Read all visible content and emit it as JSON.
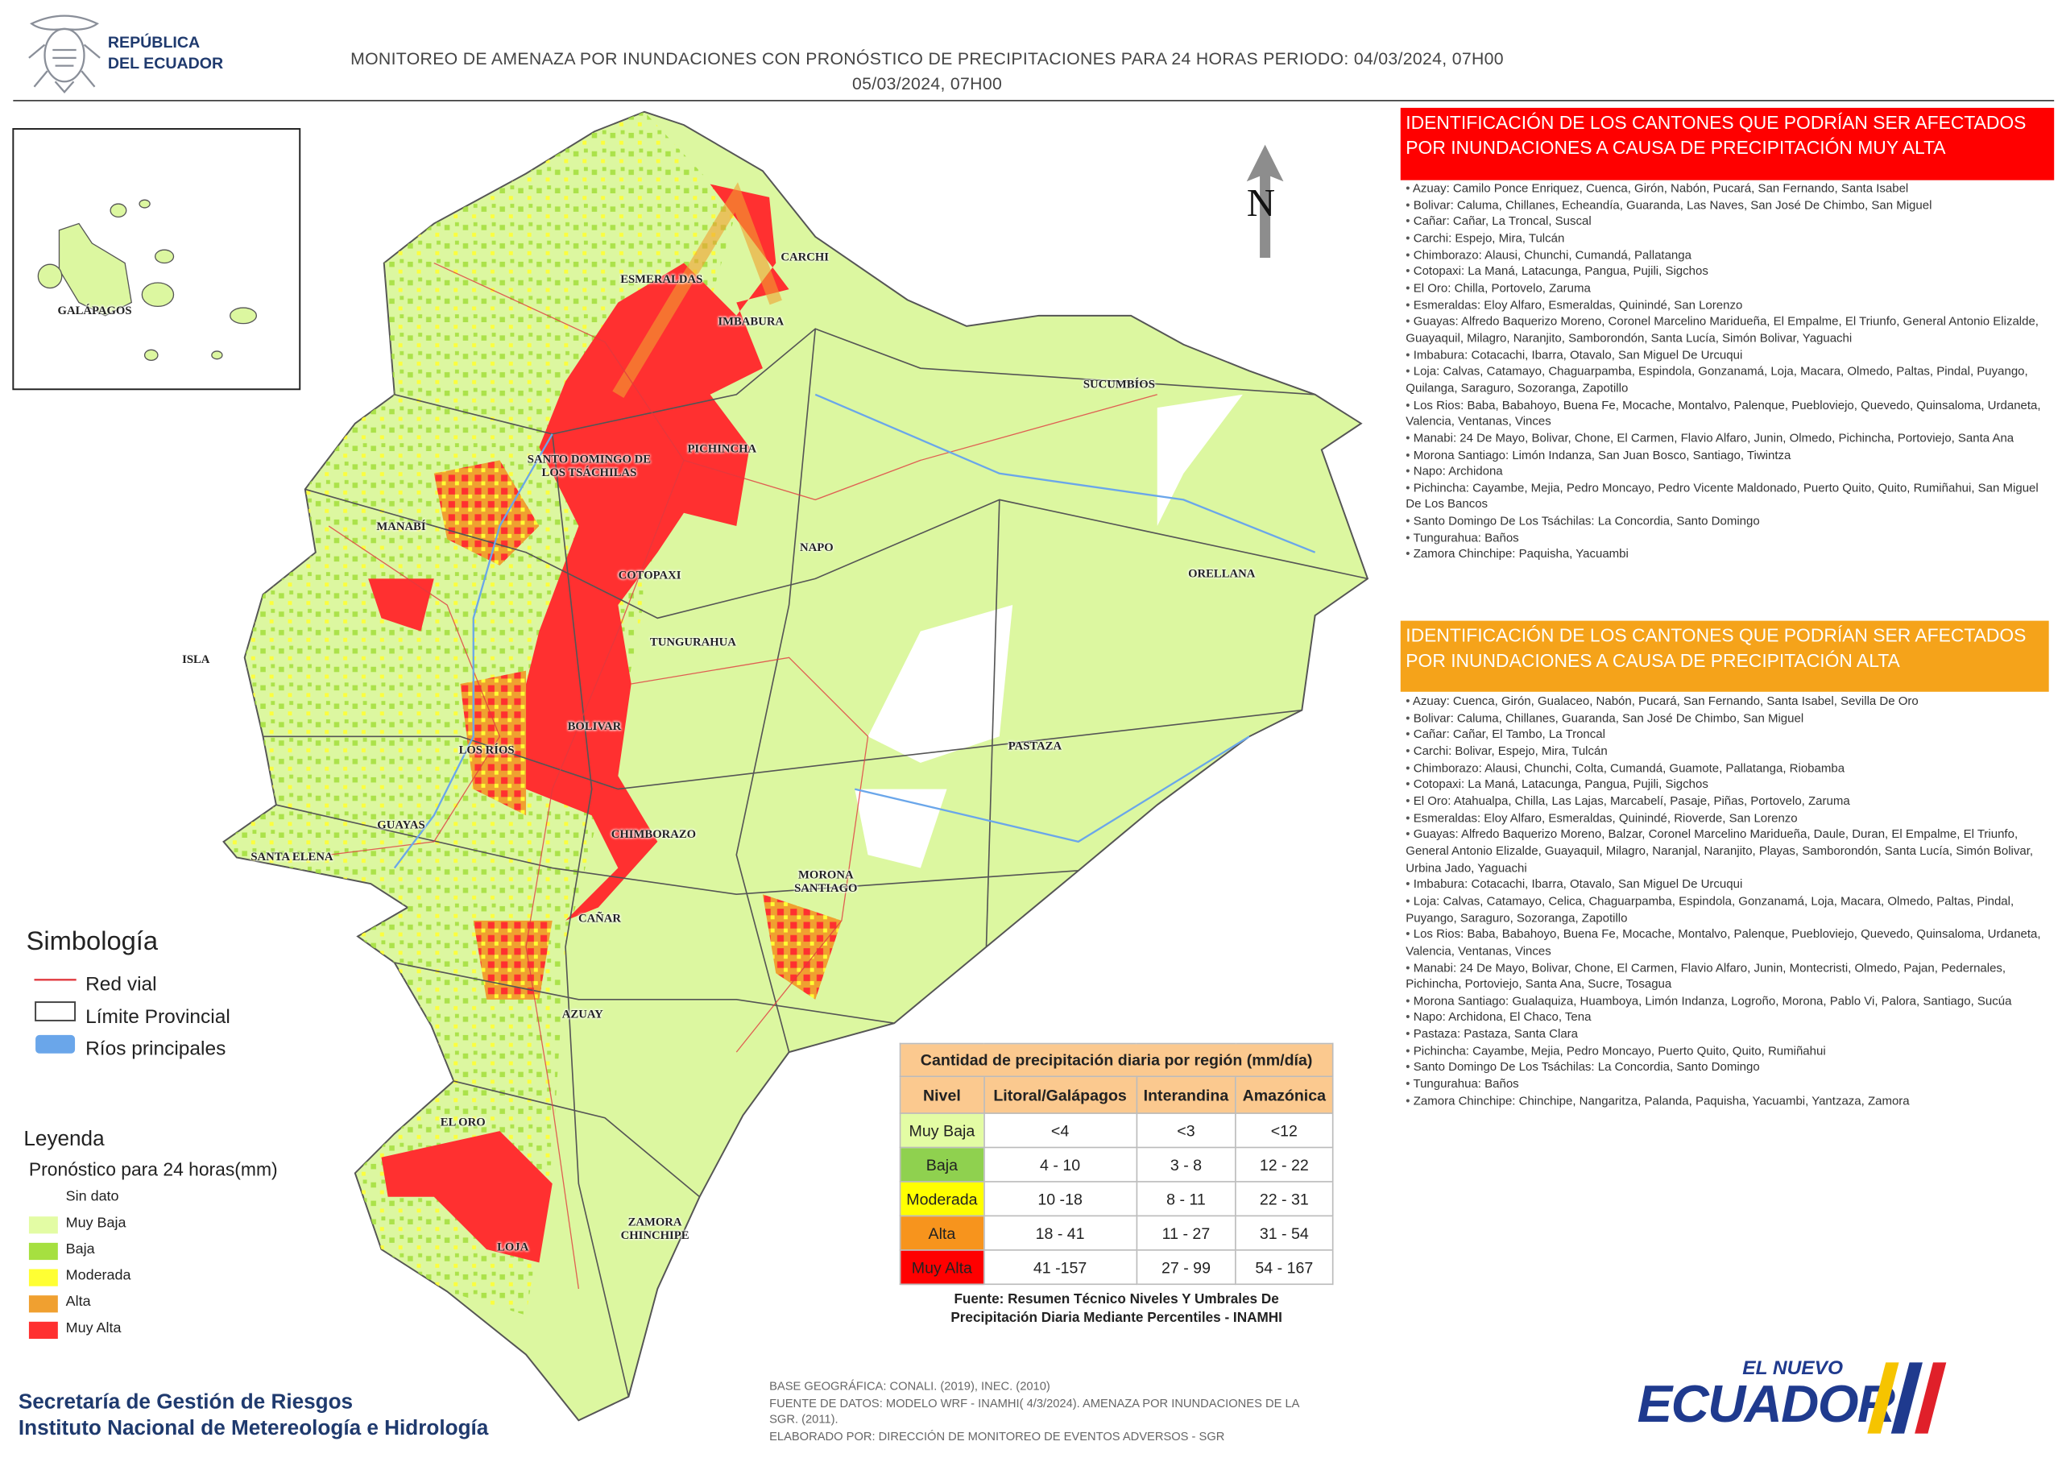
{
  "header": {
    "logo_lines": [
      "REPÚBLICA",
      "DEL ECUADOR"
    ],
    "title_lines": [
      "MONITOREO DE AMENAZA POR INUNDACIONES  CON PRONÓSTICO DE  PRECIPITACIONES PARA 24 HORAS  PERIODO: 04/03/2024, 07H00",
      "05/03/2024, 07H00"
    ]
  },
  "map": {
    "north": "N",
    "inset_label": "GALÁPAGOS",
    "labels": [
      "ESMERALDAS",
      "CARCHI",
      "IMBABURA",
      "SUCUMBÍOS",
      "SANTO DOMINGO DE LOS TSÁCHILAS",
      "PICHINCHA",
      "MANABÍ",
      "NAPO",
      "ORELLANA",
      "COTOPAXI",
      "TUNGURAHUA",
      "ISLA",
      "BOLIVAR",
      "LOS RÍOS",
      "PASTAZA",
      "GUAYAS",
      "CHIMBORAZO",
      "SANTA ELENA",
      "MORONA SANTIAGO",
      "CAÑAR",
      "AZUAY",
      "EL ORO",
      "LOJA",
      "ZAMORA CHINCHIPE"
    ]
  },
  "symbology": {
    "title": "Simbología",
    "items": [
      "Red vial",
      "Límite Provincial",
      "Ríos principales"
    ]
  },
  "legend": {
    "title": "Leyenda",
    "subtitle": "Pronóstico para 24 horas(mm)",
    "items": [
      "Sin dato",
      "Muy Baja",
      "Baja",
      "Moderada",
      "Alta",
      "Muy Alta"
    ]
  },
  "table": {
    "title": "Cantidad de precipitación diaria por región (mm/día)",
    "header": [
      "Nivel",
      "Litoral/Galápagos",
      "Interandina",
      "Amazónica"
    ],
    "rows": [
      [
        "Muy Baja",
        "<4",
        "<3",
        "<12"
      ],
      [
        "Baja",
        "4 - 10",
        "3 - 8",
        "12 - 22"
      ],
      [
        "Moderada",
        "10 -18",
        "8 - 11",
        "22 - 31"
      ],
      [
        "Alta",
        "18 - 41",
        "11 - 27",
        "31 - 54"
      ],
      [
        "Muy Alta",
        "41 -157",
        "27 - 99",
        "54 - 167"
      ]
    ],
    "source_lines": [
      "Fuente: Resumen Técnico Niveles Y Umbrales De",
      "Precipitación Diaria Mediante Percentiles - INAMHI"
    ]
  },
  "panels": [
    {
      "title": "IDENTIFICACIÓN DE LOS CANTONES QUE PODRÍAN SER AFECTADOS POR INUNDACIONES  A CAUSA DE PRECIPITACIÓN MUY ALTA",
      "items": [
        "Azuay: Camilo Ponce Enriquez, Cuenca, Girón, Nabón, Pucará, San Fernando, Santa Isabel",
        "Bolivar: Caluma, Chillanes, Echeandía, Guaranda, Las Naves, San José De Chimbo, San Miguel",
        "Cañar: Cañar, La Troncal, Suscal",
        "Carchi: Espejo, Mira, Tulcán",
        "Chimborazo: Alausi, Chunchi, Cumandá, Pallatanga",
        "Cotopaxi: La Maná, Latacunga, Pangua, Pujili, Sigchos",
        "El Oro: Chilla, Portovelo, Zaruma",
        "Esmeraldas: Eloy Alfaro, Esmeraldas, Quinindé, San Lorenzo",
        "Guayas: Alfredo Baquerizo Moreno, Coronel Marcelino Maridueña, El Empalme, El Triunfo, General Antonio Elizalde, Guayaquil, Milagro, Naranjito, Samborondón, Santa Lucía, Simón Bolivar, Yaguachi",
        "Imbabura: Cotacachi, Ibarra, Otavalo, San Miguel De Urcuqui",
        "Loja: Calvas, Catamayo, Chaguarpamba, Espindola, Gonzanamá, Loja, Macara, Olmedo, Paltas, Pindal, Puyango, Quilanga, Saraguro, Sozoranga, Zapotillo",
        "Los Rios: Baba, Babahoyo, Buena Fe, Mocache, Montalvo, Palenque, Puebloviejo, Quevedo, Quinsaloma, Urdaneta, Valencia, Ventanas, Vinces",
        "Manabi: 24 De Mayo, Bolivar, Chone, El Carmen, Flavio Alfaro, Junin, Olmedo, Pichincha, Portoviejo, Santa Ana",
        "Morona Santiago: Limón Indanza, San Juan Bosco, Santiago, Tiwintza",
        "Napo: Archidona",
        "Pichincha: Cayambe, Mejia, Pedro Moncayo, Pedro Vicente Maldonado, Puerto Quito, Quito, Rumiñahui, San Miguel De Los Bancos",
        "Santo Domingo De Los Tsáchilas: La Concordia, Santo Domingo",
        "Tungurahua: Baños",
        "Zamora Chinchipe: Paquisha, Yacuambi"
      ]
    },
    {
      "title": "IDENTIFICACIÓN DE LOS CANTONES QUE  PODRÍAN SER AFECTADOS POR INUNDACIONES  A CAUSA DE PRECIPITACIÓN  ALTA",
      "items": [
        "Azuay: Cuenca, Girón, Gualaceo, Nabón, Pucará, San Fernando, Santa Isabel, Sevilla De Oro",
        "Bolivar: Caluma, Chillanes, Guaranda, San José De Chimbo, San Miguel",
        "Cañar: Cañar, El Tambo, La Troncal",
        "Carchi: Bolivar, Espejo, Mira, Tulcán",
        "Chimborazo: Alausi, Chunchi, Colta, Cumandá, Guamote, Pallatanga, Riobamba",
        "Cotopaxi: La Maná, Latacunga, Pangua, Pujili, Sigchos",
        "El Oro: Atahualpa, Chilla, Las Lajas, Marcabelí, Pasaje, Piñas, Portovelo, Zaruma",
        "Esmeraldas: Eloy Alfaro, Esmeraldas, Quinindé, Rioverde, San Lorenzo",
        "Guayas: Alfredo Baquerizo Moreno, Balzar, Coronel Marcelino Maridueña, Daule, Duran, El Empalme, El Triunfo, General Antonio Elizalde, Guayaquil, Milagro, Naranjal, Naranjito, Playas, Samborondón, Santa Lucía, Simón Bolivar, Urbina Jado, Yaguachi",
        "Imbabura: Cotacachi, Ibarra, Otavalo, San Miguel De Urcuqui",
        "Loja: Calvas, Catamayo, Celica, Chaguarpamba, Espindola, Gonzanamá, Loja, Macara, Olmedo, Paltas, Pindal, Puyango, Saraguro, Sozoranga, Zapotillo",
        "Los Rios: Baba, Babahoyo, Buena Fe, Mocache, Montalvo, Palenque, Puebloviejo, Quevedo, Quinsaloma, Urdaneta, Valencia, Ventanas, Vinces",
        "Manabi: 24 De Mayo, Bolivar, Chone, El Carmen, Flavio Alfaro, Junin, Montecristi, Olmedo, Pajan, Pedernales, Pichincha, Portoviejo, Santa Ana, Sucre, Tosagua",
        "Morona Santiago: Gualaquiza, Huamboya, Limón Indanza, Logroño, Morona, Pablo Vi, Palora, Santiago, Sucúa",
        "Napo: Archidona, El Chaco, Tena",
        "Pastaza: Pastaza, Santa Clara",
        "Pichincha: Cayambe, Mejia, Pedro Moncayo, Puerto Quito, Quito, Rumiñahui",
        "Santo Domingo De Los Tsáchilas: La Concordia, Santo Domingo",
        "Tungurahua: Baños",
        "Zamora Chinchipe: Chinchipe, Nangaritza, Palanda, Paquisha, Yacuambi, Yantzaza, Zamora"
      ]
    }
  ],
  "footer": {
    "org_lines": [
      "Secretaría de Gestión de Riesgos",
      "Instituto Nacional de Metereología e Hidrología"
    ],
    "notes": [
      "BASE GEOGRÁFICA: CONALI. (2019), INEC. (2010)",
      "FUENTE DE DATOS: MODELO WRF - INAMHI( 4/3/2024).  AMENAZA POR INUNDACIONES DE LA",
      "SGR. (2011).",
      "ELABORADO POR: DIRECCIÓN DE MONITOREO DE EVENTOS ADVERSOS - SGR"
    ],
    "logo_lines": [
      "EL NUEVO",
      "ECUADOR"
    ]
  }
}
